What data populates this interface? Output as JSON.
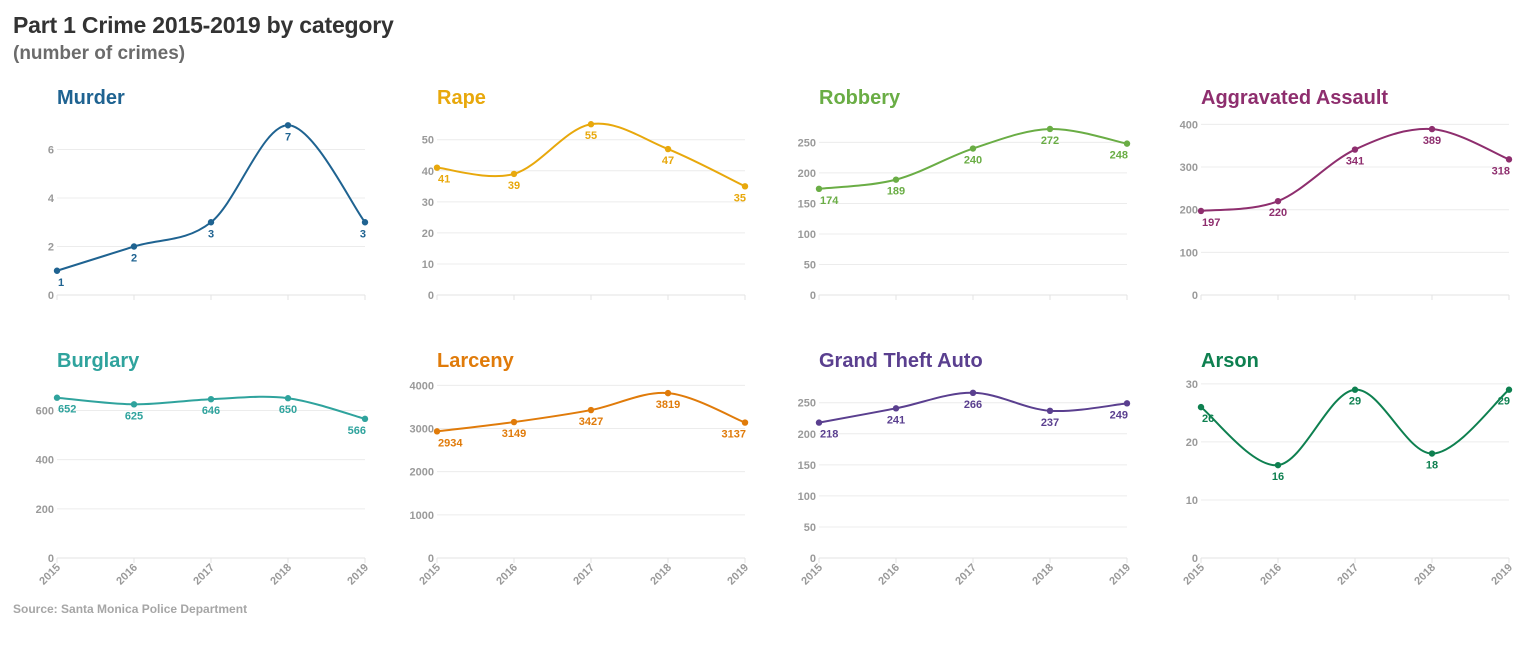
{
  "header": {
    "title": "Part 1 Crime 2015-2019 by category",
    "subtitle": "(number of crimes)"
  },
  "footer": {
    "source": "Source: Santa Monica Police Department"
  },
  "chart_data": [
    {
      "type": "line",
      "title": "Murder",
      "color": "#1f6391",
      "x": [
        "2015",
        "2016",
        "2017",
        "2018",
        "2019"
      ],
      "values": [
        1,
        2,
        3,
        7,
        3
      ],
      "yticks": [
        0,
        2,
        4,
        6
      ],
      "ylim": [
        0,
        7.3
      ],
      "show_x_labels": false,
      "xlabel": "",
      "ylabel": "",
      "grid": true,
      "smooth": true
    },
    {
      "type": "line",
      "title": "Rape",
      "color": "#e8a80c",
      "x": [
        "2015",
        "2016",
        "2017",
        "2018",
        "2019"
      ],
      "values": [
        41,
        39,
        55,
        47,
        35
      ],
      "yticks": [
        0,
        10,
        20,
        30,
        40,
        50
      ],
      "ylim": [
        0,
        57
      ],
      "show_x_labels": false,
      "xlabel": "",
      "ylabel": "",
      "grid": true,
      "smooth": true
    },
    {
      "type": "line",
      "title": "Robbery",
      "color": "#6aad45",
      "x": [
        "2015",
        "2016",
        "2017",
        "2018",
        "2019"
      ],
      "values": [
        174,
        189,
        240,
        272,
        248
      ],
      "yticks": [
        0,
        50,
        100,
        150,
        200,
        250
      ],
      "ylim": [
        0,
        290
      ],
      "show_x_labels": false,
      "xlabel": "",
      "ylabel": "",
      "grid": true,
      "smooth": true
    },
    {
      "type": "line",
      "title": "Aggravated Assault",
      "color": "#8e2e6e",
      "x": [
        "2015",
        "2016",
        "2017",
        "2018",
        "2019"
      ],
      "values": [
        197,
        220,
        341,
        389,
        318
      ],
      "yticks": [
        0,
        100,
        200,
        300,
        400
      ],
      "ylim": [
        0,
        415
      ],
      "show_x_labels": false,
      "xlabel": "",
      "ylabel": "",
      "grid": true,
      "smooth": true
    },
    {
      "type": "line",
      "title": "Burglary",
      "color": "#2fa39d",
      "x": [
        "2015",
        "2016",
        "2017",
        "2018",
        "2019"
      ],
      "values": [
        652,
        625,
        646,
        650,
        566
      ],
      "yticks": [
        0,
        200,
        400,
        600
      ],
      "ylim": [
        0,
        720
      ],
      "show_x_labels": true,
      "xlabel": "",
      "ylabel": "",
      "grid": true,
      "smooth": true
    },
    {
      "type": "line",
      "title": "Larceny",
      "color": "#e07b0a",
      "x": [
        "2015",
        "2016",
        "2017",
        "2018",
        "2019"
      ],
      "values": [
        2934,
        3149,
        3427,
        3819,
        3137
      ],
      "yticks": [
        0,
        1000,
        2000,
        3000,
        4000
      ],
      "ylim": [
        0,
        4100
      ],
      "show_x_labels": true,
      "xlabel": "",
      "ylabel": "",
      "grid": true,
      "smooth": true
    },
    {
      "type": "line",
      "title": "Grand Theft Auto",
      "color": "#5a3f8f",
      "x": [
        "2015",
        "2016",
        "2017",
        "2018",
        "2019"
      ],
      "values": [
        218,
        241,
        266,
        237,
        249
      ],
      "yticks": [
        0,
        50,
        100,
        150,
        200,
        250
      ],
      "ylim": [
        0,
        285
      ],
      "show_x_labels": true,
      "xlabel": "",
      "ylabel": "",
      "grid": true,
      "smooth": true
    },
    {
      "type": "line",
      "title": "Arson",
      "color": "#0e8050",
      "x": [
        "2015",
        "2016",
        "2017",
        "2018",
        "2019"
      ],
      "values": [
        26,
        16,
        29,
        18,
        29
      ],
      "yticks": [
        0,
        10,
        20,
        30
      ],
      "ylim": [
        0,
        30.5
      ],
      "show_x_labels": true,
      "xlabel": "",
      "ylabel": "",
      "grid": true,
      "smooth": true
    }
  ]
}
